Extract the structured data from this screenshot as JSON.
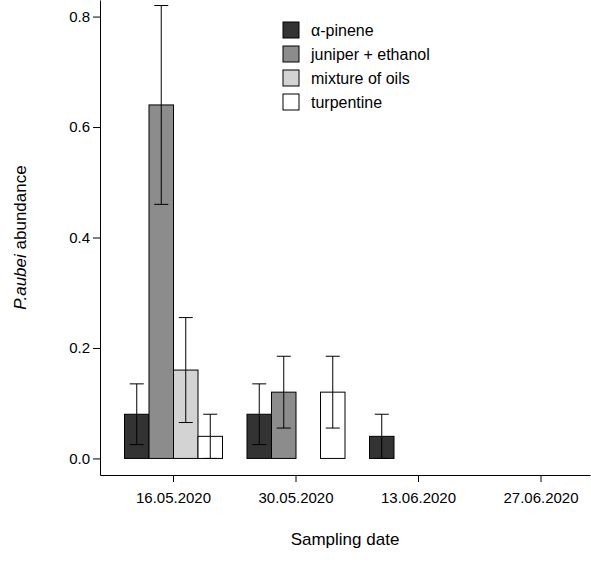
{
  "chart_data": {
    "type": "bar",
    "x_label": "Sampling date",
    "y_label": "P.aubei abundance",
    "categories": [
      "16.05.2020",
      "30.05.2020",
      "13.06.2020",
      "27.06.2020"
    ],
    "series": [
      {
        "name": "α-pinene",
        "color": "#333333",
        "values": [
          0.08,
          0.08,
          0.04,
          0
        ],
        "errors": [
          0.055,
          0.055,
          0.04,
          0
        ]
      },
      {
        "name": "juniper + ethanol",
        "color": "#8c8c8c",
        "values": [
          0.64,
          0.12,
          0,
          0
        ],
        "errors": [
          0.18,
          0.065,
          0,
          0
        ]
      },
      {
        "name": "mixture of oils",
        "color": "#d3d3d3",
        "values": [
          0.16,
          0,
          0,
          0
        ],
        "errors": [
          0.095,
          0,
          0,
          0
        ]
      },
      {
        "name": "turpentine",
        "color": "#ffffff",
        "values": [
          0.04,
          0.12,
          0,
          0
        ],
        "errors": [
          0.04,
          0.065,
          0,
          0
        ]
      }
    ],
    "ylim": [
      -0.03,
      0.83
    ],
    "yticks": [
      {
        "value": 0,
        "label": "0.0"
      },
      {
        "value": 0.2,
        "label": "0.2"
      },
      {
        "value": 0.4,
        "label": "0.4"
      },
      {
        "value": 0.6,
        "label": "0.6"
      },
      {
        "value": 0.8,
        "label": "0.8"
      }
    ],
    "legend": "top-right",
    "grid": false
  }
}
